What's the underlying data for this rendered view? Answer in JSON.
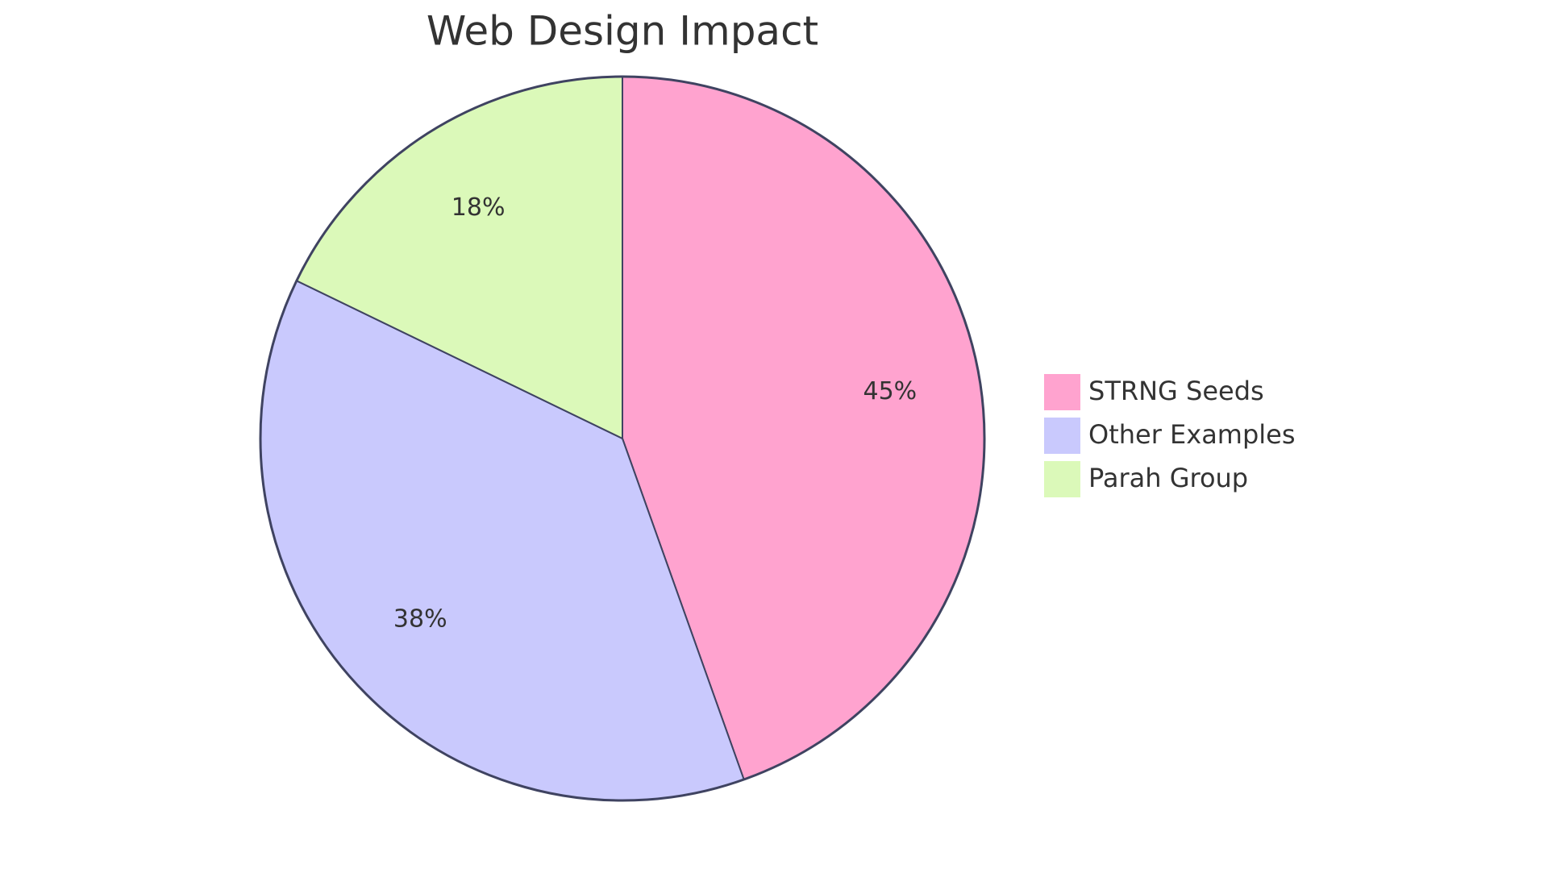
{
  "chart_data": {
    "type": "pie",
    "title": "Web Design Impact",
    "categories": [
      "STRNG Seeds",
      "Other Examples",
      "Parah Group"
    ],
    "values": [
      45,
      38,
      18
    ],
    "value_labels": [
      "45%",
      "38%",
      "18%"
    ],
    "colors": [
      "#ffa3cf",
      "#c9c9fd",
      "#dbf9b9"
    ],
    "legend": "right"
  }
}
